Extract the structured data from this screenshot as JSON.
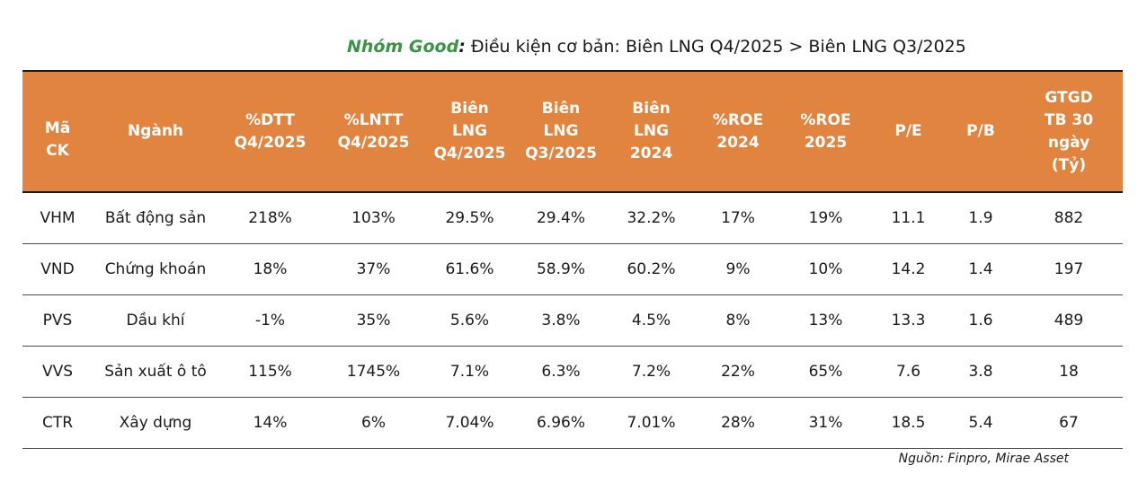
{
  "title": {
    "group": "Nhóm Good",
    "colon": ":",
    "text": " Điều kiện cơ bản: Biên LNG Q4/2025  > Biên  LNG Q3/2025"
  },
  "table": {
    "headers": [
      "Mã\nCK",
      "Ngành",
      "%DTT\nQ4/2025",
      "%LNTT\nQ4/2025",
      "Biên\nLNG\nQ4/2025",
      "Biên\nLNG\nQ3/2025",
      "Biên\nLNG\n2024",
      "%ROE\n2024",
      "%ROE\n2025",
      "P/E",
      "P/B",
      "GTGD\nTB 30\nngày\n(Tỷ)"
    ],
    "rows": [
      [
        "VHM",
        "Bất động sản",
        "218%",
        "103%",
        "29.5%",
        "29.4%",
        "32.2%",
        "17%",
        "19%",
        "11.1",
        "1.9",
        "882"
      ],
      [
        "VND",
        "Chứng khoán",
        "18%",
        "37%",
        "61.6%",
        "58.9%",
        "60.2%",
        "9%",
        "10%",
        "14.2",
        "1.4",
        "197"
      ],
      [
        "PVS",
        "Dầu khí",
        "-1%",
        "35%",
        "5.6%",
        "3.8%",
        "4.5%",
        "8%",
        "13%",
        "13.3",
        "1.6",
        "489"
      ],
      [
        "VVS",
        "Sản xuất ô tô",
        "115%",
        "1745%",
        "7.1%",
        "6.3%",
        "7.2%",
        "22%",
        "65%",
        "7.6",
        "3.8",
        "18"
      ],
      [
        "CTR",
        "Xây dựng",
        "14%",
        "6%",
        "7.04%",
        "6.96%",
        "7.01%",
        "28%",
        "31%",
        "18.5",
        "5.4",
        "67"
      ]
    ]
  },
  "source": "Nguồn: Finpro, Mirae Asset",
  "colors": {
    "header_bg": "#e0843f",
    "header_text": "#ffffff",
    "group_label": "#3a9447"
  }
}
